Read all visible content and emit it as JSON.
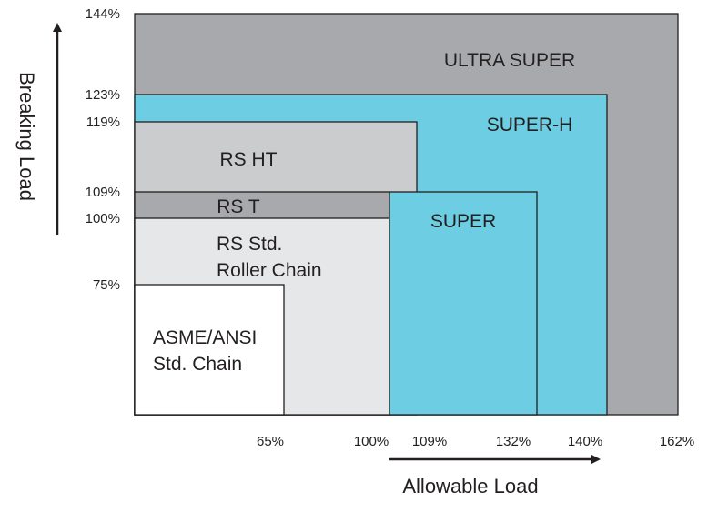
{
  "chart_data": {
    "type": "area",
    "title": "",
    "xlabel": "Allowable Load",
    "ylabel": "Breaking Load",
    "grid": false,
    "legend": "none",
    "x_ticks": [
      {
        "value": 65,
        "label": "65%"
      },
      {
        "value": 100,
        "label": "100%"
      },
      {
        "value": 109,
        "label": "109%"
      },
      {
        "value": 132,
        "label": "132%"
      },
      {
        "value": 140,
        "label": "140%"
      },
      {
        "value": 162,
        "label": "162%"
      }
    ],
    "y_ticks": [
      {
        "value": 75,
        "label": "75%"
      },
      {
        "value": 100,
        "label": "100%"
      },
      {
        "value": 109,
        "label": "109%"
      },
      {
        "value": 119,
        "label": "119%"
      },
      {
        "value": 123,
        "label": "123%"
      },
      {
        "value": 144,
        "label": "144%"
      }
    ],
    "series": [
      {
        "name": "ULTRA SUPER",
        "label_lines": [
          "ULTRA SUPER"
        ],
        "allowable_load": 162,
        "breaking_load": 144,
        "color": "#a7a9ac"
      },
      {
        "name": "SUPER-H",
        "label_lines": [
          "SUPER-H"
        ],
        "allowable_load": 140,
        "breaking_load": 123,
        "color": "#6ccde3"
      },
      {
        "name": "RS HT",
        "label_lines": [
          "RS HT"
        ],
        "allowable_load": 109,
        "breaking_load": 119,
        "color": "#cbcccd"
      },
      {
        "name": "RS T",
        "label_lines": [
          "RS T"
        ],
        "allowable_load": 100,
        "breaking_load": 109,
        "color": "#a7a9ac"
      },
      {
        "name": "RS Std. Roller Chain",
        "label_lines": [
          "RS Std.",
          "Roller Chain"
        ],
        "allowable_load": 100,
        "breaking_load": 100,
        "color": "#e6e7e8"
      },
      {
        "name": "SUPER",
        "label_lines": [
          "SUPER"
        ],
        "allowable_load": 132,
        "breaking_load": 109,
        "color": "#6ccde3",
        "starts_at_allowable_load": 100
      },
      {
        "name": "ASME/ANSI Std. Chain",
        "label_lines": [
          "ASME/ANSI",
          "Std. Chain"
        ],
        "allowable_load": 65,
        "breaking_load": 75,
        "color": "#ffffff"
      }
    ]
  }
}
